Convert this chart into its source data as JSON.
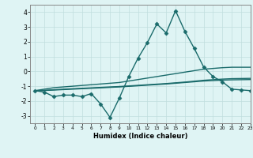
{
  "x": [
    0,
    1,
    2,
    3,
    4,
    5,
    6,
    7,
    8,
    9,
    10,
    11,
    12,
    13,
    14,
    15,
    16,
    17,
    18,
    19,
    20,
    21,
    22,
    23
  ],
  "line1": [
    -1.3,
    -1.4,
    -1.7,
    -1.6,
    -1.6,
    -1.7,
    -1.5,
    -2.2,
    -3.1,
    -1.8,
    -0.35,
    0.9,
    1.95,
    3.2,
    2.6,
    4.1,
    2.7,
    1.55,
    0.3,
    -0.35,
    -0.7,
    -1.2,
    -1.25,
    -1.3
  ],
  "line2": [
    -1.3,
    -1.2,
    -1.1,
    -1.05,
    -1.0,
    -0.95,
    -0.9,
    -0.85,
    -0.8,
    -0.75,
    -0.65,
    -0.55,
    -0.45,
    -0.35,
    -0.25,
    -0.15,
    -0.05,
    0.05,
    0.15,
    0.2,
    0.25,
    0.28,
    0.28,
    0.28
  ],
  "line3": [
    -1.3,
    -1.28,
    -1.24,
    -1.2,
    -1.17,
    -1.14,
    -1.11,
    -1.08,
    -1.05,
    -1.02,
    -0.98,
    -0.94,
    -0.9,
    -0.86,
    -0.82,
    -0.77,
    -0.72,
    -0.66,
    -0.6,
    -0.56,
    -0.52,
    -0.49,
    -0.48,
    -0.47
  ],
  "line4": [
    -1.3,
    -1.29,
    -1.26,
    -1.23,
    -1.2,
    -1.17,
    -1.14,
    -1.11,
    -1.08,
    -1.05,
    -1.01,
    -0.97,
    -0.93,
    -0.89,
    -0.85,
    -0.8,
    -0.75,
    -0.7,
    -0.65,
    -0.62,
    -0.59,
    -0.57,
    -0.56,
    -0.55
  ],
  "line_color": "#1a6b6b",
  "bg_color": "#dff4f4",
  "grid_color": "#c0dede",
  "xlabel": "Humidex (Indice chaleur)",
  "xlim": [
    -0.5,
    23
  ],
  "ylim": [
    -3.5,
    4.5
  ],
  "yticks": [
    -3,
    -2,
    -1,
    0,
    1,
    2,
    3,
    4
  ],
  "xticks": [
    0,
    1,
    2,
    3,
    4,
    5,
    6,
    7,
    8,
    9,
    10,
    11,
    12,
    13,
    14,
    15,
    16,
    17,
    18,
    19,
    20,
    21,
    22,
    23
  ],
  "marker": "D",
  "markersize": 2.5,
  "linewidth": 1.0
}
